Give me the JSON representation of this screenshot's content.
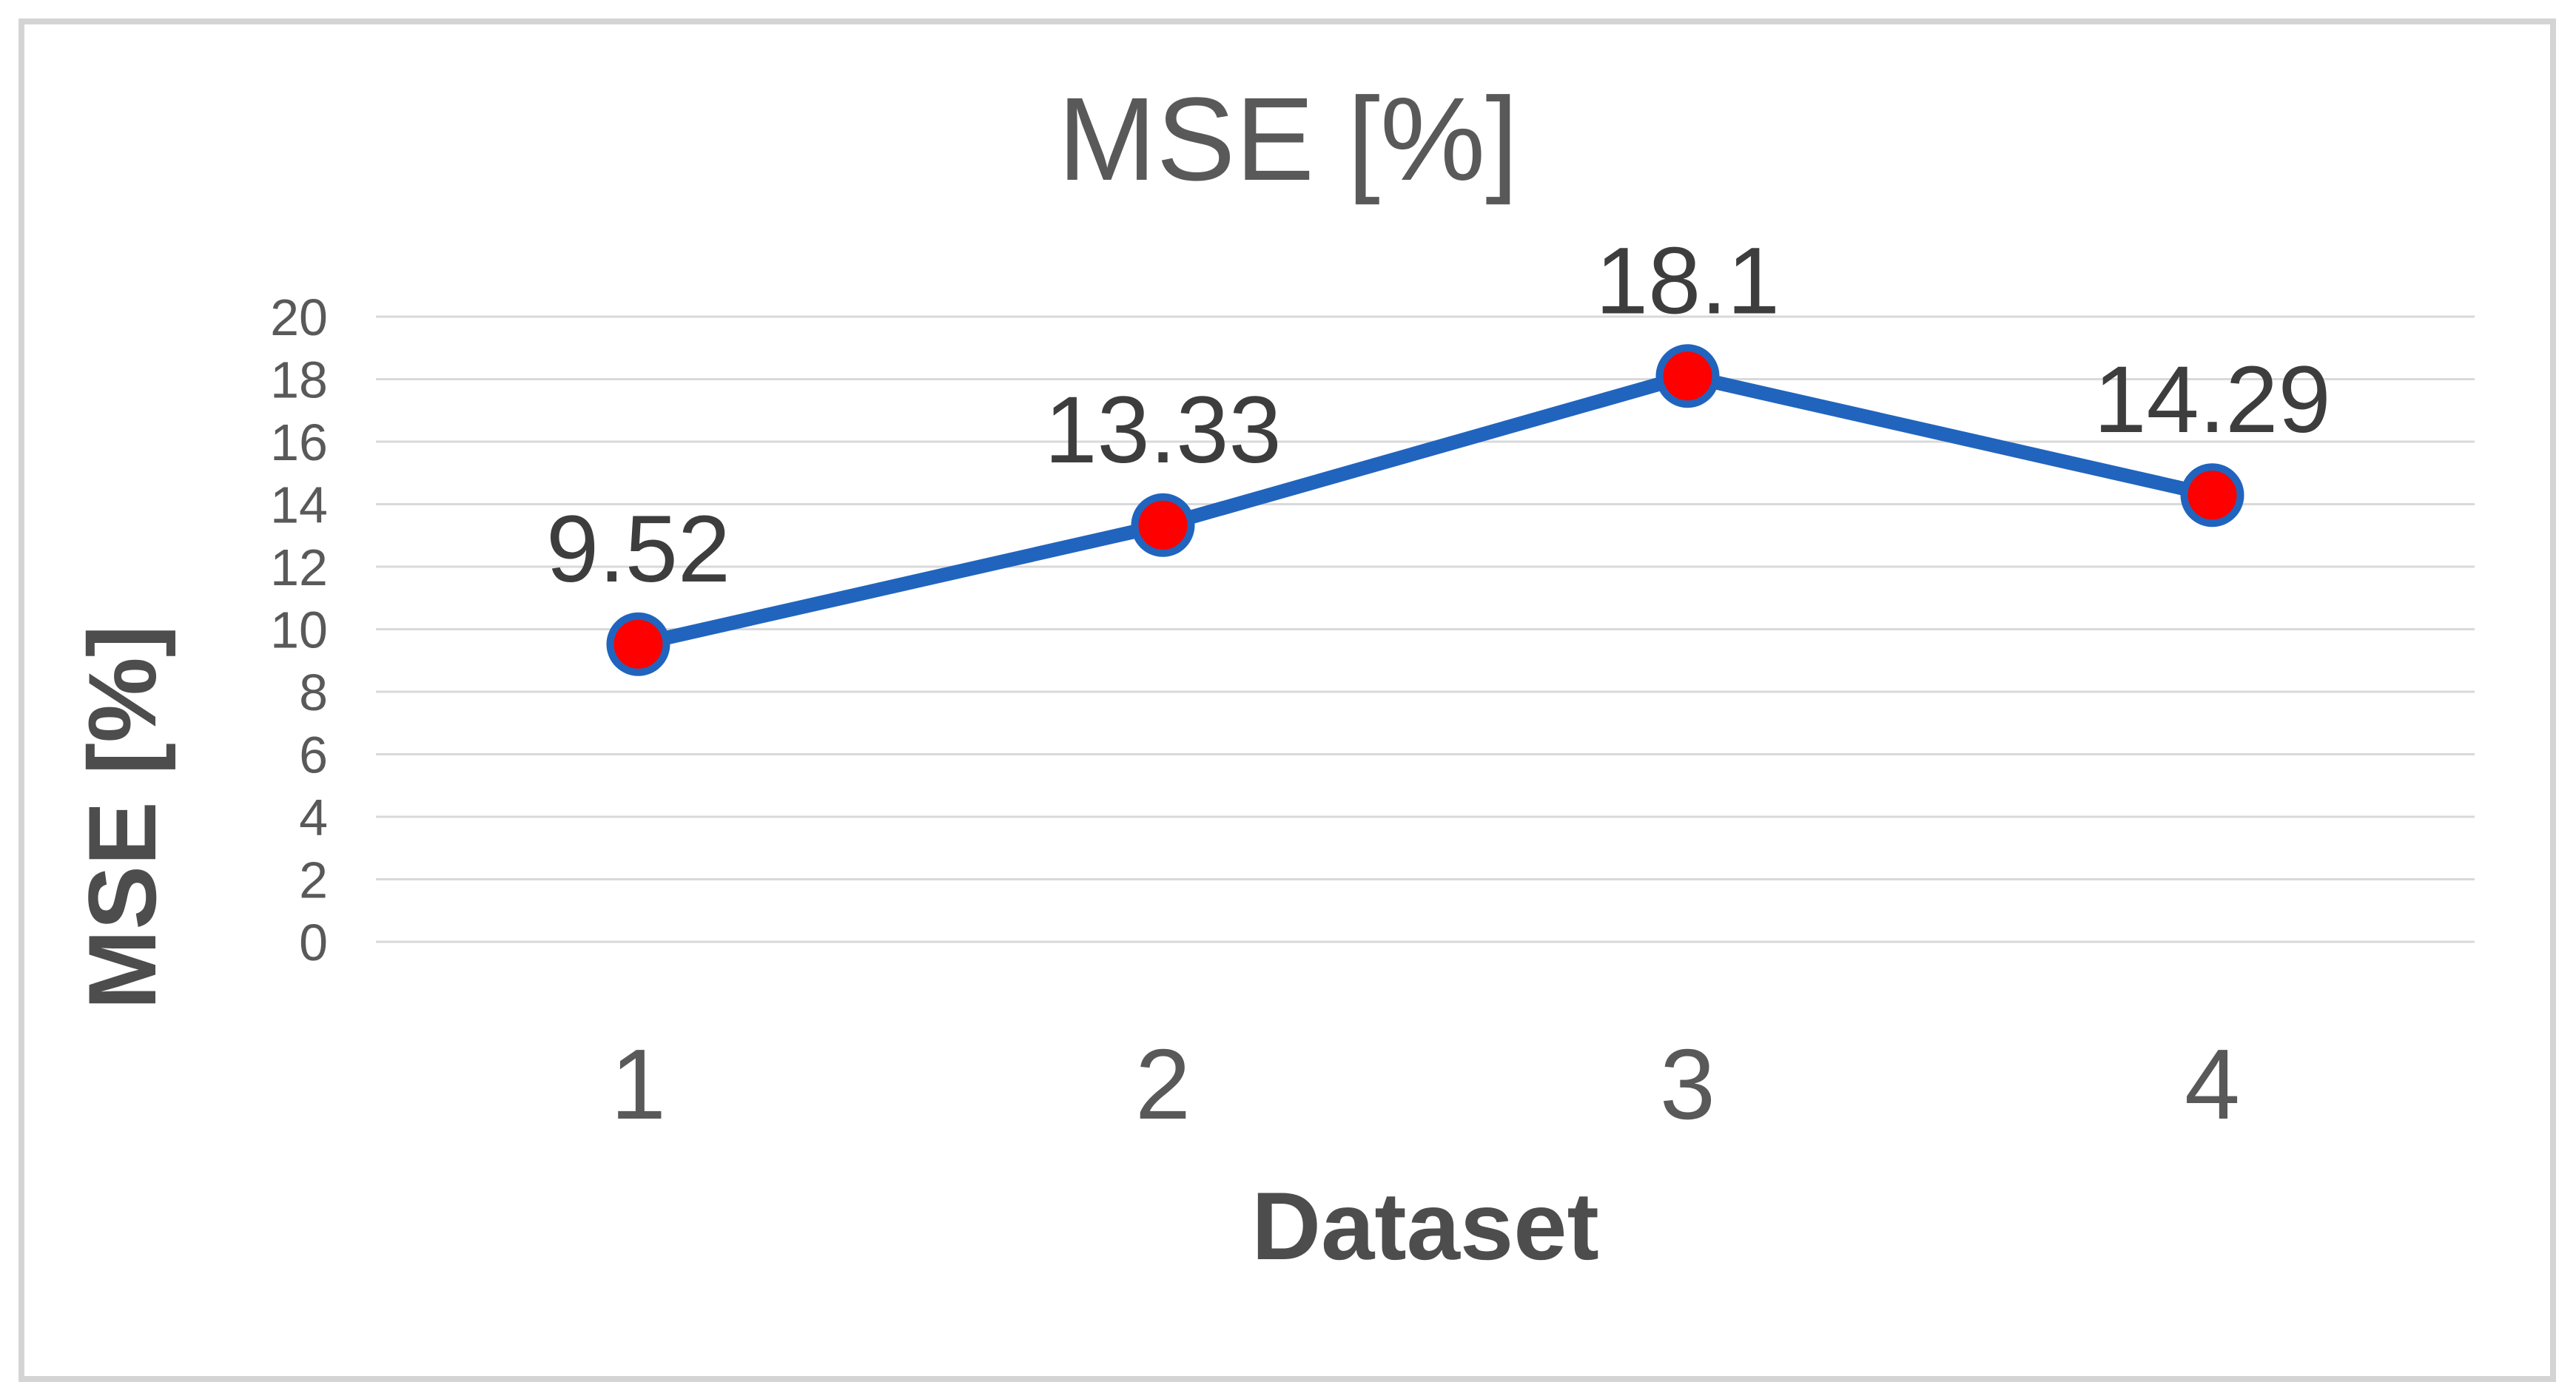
{
  "figure": {
    "background": "#ffffff",
    "frame_border_color": "#d4d4d4"
  },
  "chart_data": {
    "type": "line",
    "title": "MSE [%]",
    "xlabel": "Dataset",
    "ylabel": "MSE [%]",
    "categories": [
      "1",
      "2",
      "3",
      "4"
    ],
    "series": [
      {
        "name": "MSE [%]",
        "values": [
          9.52,
          13.33,
          18.1,
          14.29
        ]
      }
    ],
    "data_labels": [
      "9.52",
      "13.33",
      "18.1",
      "14.29"
    ],
    "ylim": [
      0,
      20
    ],
    "ytick_step": 2,
    "ytick_labels": [
      "0",
      "2",
      "4",
      "6",
      "8",
      "10",
      "12",
      "14",
      "16",
      "18",
      "20"
    ],
    "grid": true,
    "legend_position": "none",
    "colors": {
      "line": "#2164be",
      "marker_fill": "#ff0000",
      "marker_stroke": "#2164be",
      "gridline": "#d9d9d9",
      "tick_text": "#595959",
      "data_label_text": "#3d3d3d",
      "title_text": "#595959",
      "axis_title_text": "#4d4d4d"
    }
  }
}
